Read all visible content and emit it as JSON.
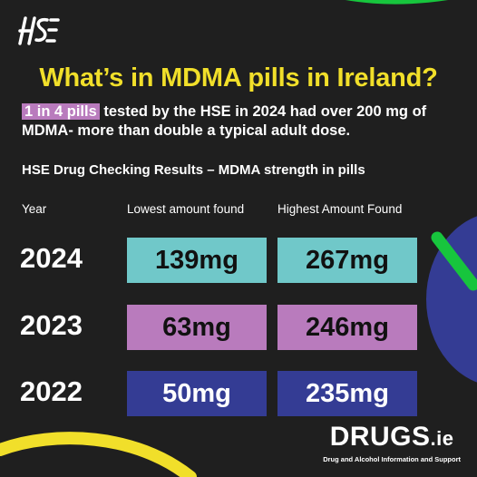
{
  "title": "What’s in MDMA pills in Ireland?",
  "intro": {
    "highlight": "1 in 4 pills",
    "rest": " tested by the HSE in 2024 had over 200 mg of MDMA- more than double a typical adult dose."
  },
  "subtitle": "HSE Drug Checking Results – MDMA strength in pills",
  "table": {
    "headers": {
      "year": "Year",
      "lowest": "Lowest amount found",
      "highest": "Highest Amount Found"
    },
    "rows": [
      {
        "year": "2024",
        "lowest": "139mg",
        "highest": "267mg"
      },
      {
        "year": "2023",
        "lowest": "63mg",
        "highest": "246mg"
      },
      {
        "year": "2022",
        "lowest": "50mg",
        "highest": "235mg"
      }
    ]
  },
  "brand": {
    "name": "DRUGS",
    "domain": ".ie",
    "tagline": "Drug and Alcohol Information and Support"
  },
  "colors": {
    "background": "#1f1f1f",
    "title_yellow": "#f1df2a",
    "teal": "#70c8c9",
    "mauve": "#b97bbd",
    "navy": "#343c94",
    "green": "#17c53d"
  }
}
